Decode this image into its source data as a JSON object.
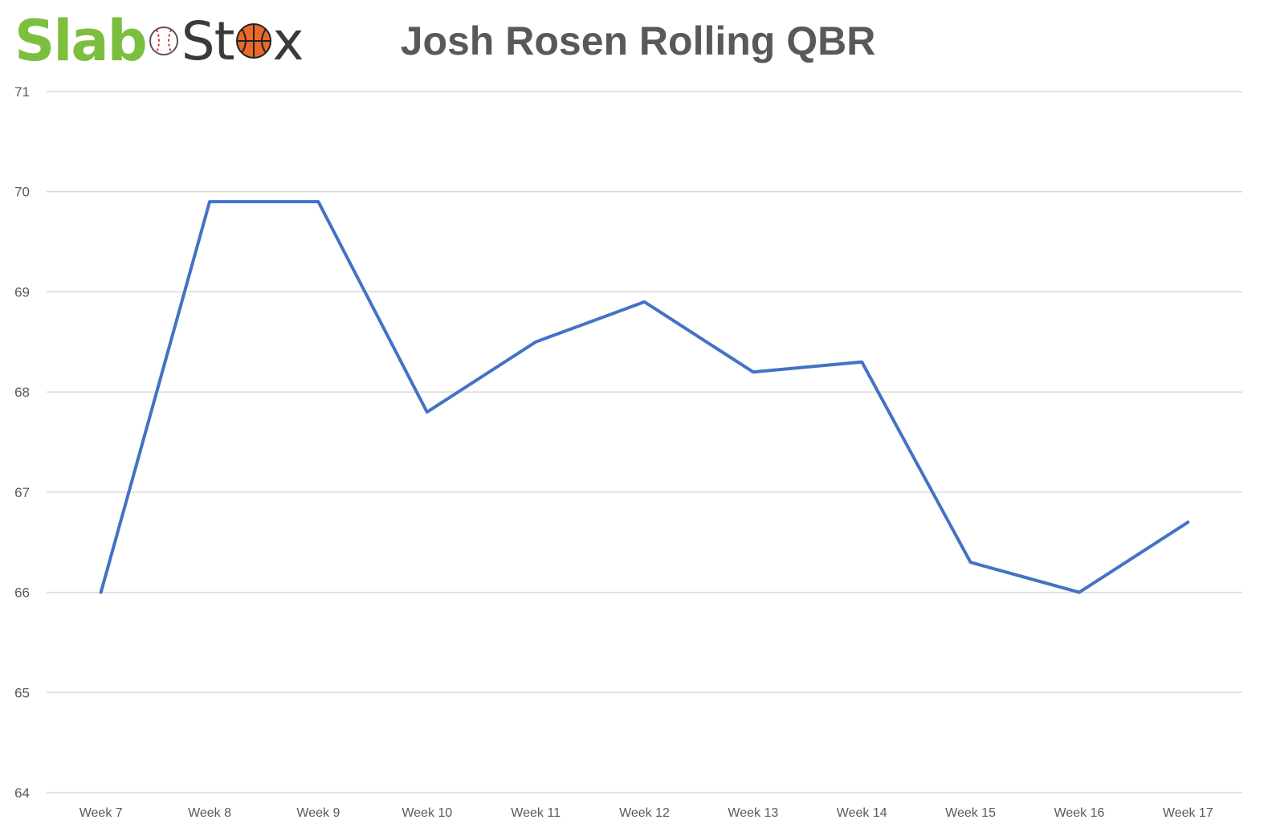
{
  "brand": {
    "part1": "Slab",
    "part2a": "St",
    "part2b": "x",
    "colors": {
      "slab": "#7cbf3f",
      "stox": "#3a3a3a",
      "basketball": "#e8692a"
    },
    "icons": [
      "baseball-icon",
      "basketball-icon"
    ]
  },
  "chart_data": {
    "type": "line",
    "title": "Josh Rosen Rolling QBR",
    "xlabel": "",
    "ylabel": "",
    "categories": [
      "Week 7",
      "Week 8",
      "Week 9",
      "Week 10",
      "Week 11",
      "Week 12",
      "Week 13",
      "Week 14",
      "Week 15",
      "Week 16",
      "Week 17"
    ],
    "series": [
      {
        "values": [
          66.0,
          69.9,
          69.9,
          67.8,
          68.5,
          68.9,
          68.2,
          68.3,
          66.3,
          66.0,
          66.7
        ],
        "color": "#4472c4"
      }
    ],
    "ylim": [
      64,
      71
    ],
    "yticks": [
      64,
      65,
      66,
      67,
      68,
      69,
      70,
      71
    ],
    "grid": true,
    "legend": "none"
  }
}
